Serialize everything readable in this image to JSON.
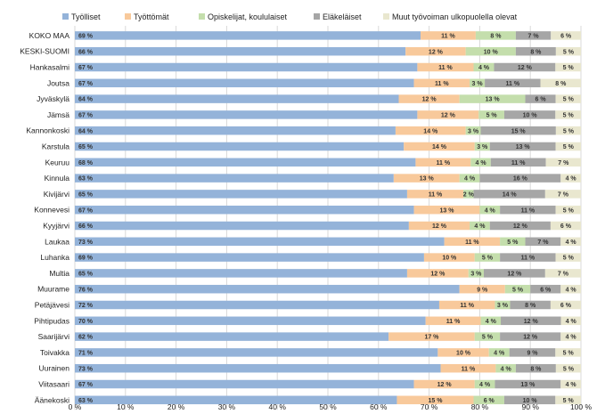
{
  "chart_data": {
    "type": "bar",
    "orientation": "horizontal",
    "stacked": true,
    "percent_stacked": true,
    "title": "",
    "xlabel": "",
    "ylabel": "",
    "xlim": [
      0,
      100
    ],
    "x_ticks": [
      "0 %",
      "10 %",
      "20 %",
      "30 %",
      "40 %",
      "50 %",
      "60 %",
      "70 %",
      "80 %",
      "90 %",
      "100 %"
    ],
    "grid": true,
    "legend_position": "top",
    "categories": [
      "KOKO MAA",
      "KESKI-SUOMI",
      "Hankasalmi",
      "Joutsa",
      "Jyväskylä",
      "Jämsä",
      "Kannonkoski",
      "Karstula",
      "Keuruu",
      "Kinnula",
      "Kivijärvi",
      "Konnevesi",
      "Kyyjärvi",
      "Laukaa",
      "Luhanka",
      "Multia",
      "Muurame",
      "Petäjävesi",
      "Pihtipudas",
      "Saarijärvi",
      "Toivakka",
      "Uurainen",
      "Viitasaari",
      "Äänekoski"
    ],
    "series": [
      {
        "name": "Työlliset",
        "color": "#94b3d9",
        "values": [
          69,
          66,
          67,
          67,
          64,
          67,
          64,
          65,
          68,
          63,
          65,
          67,
          66,
          73,
          69,
          65,
          76,
          72,
          70,
          62,
          71,
          73,
          67,
          63
        ],
        "labels": [
          "69 %",
          "66 %",
          "67 %",
          "67 %",
          "64 %",
          "67 %",
          "64 %",
          "65 %",
          "68 %",
          "63 %",
          "65 %",
          "67 %",
          "66 %",
          "73 %",
          "69 %",
          "65 %",
          "76 %",
          "72 %",
          "70 %",
          "62 %",
          "71 %",
          "73 %",
          "67 %",
          "63 %"
        ]
      },
      {
        "name": "Työttömät",
        "color": "#f8c99b",
        "values": [
          11,
          12,
          11,
          11,
          12,
          12,
          14,
          14,
          11,
          13,
          11,
          13,
          12,
          11,
          10,
          12,
          9,
          11,
          11,
          17,
          10,
          11,
          12,
          15
        ],
        "labels": [
          "11 %",
          "12 %",
          "11 %",
          "11 %",
          "12 %",
          "12 %",
          "14 %",
          "14 %",
          "11 %",
          "13 %",
          "11 %",
          "13 %",
          "12 %",
          "11 %",
          "10 %",
          "12 %",
          "9 %",
          "11 %",
          "11 %",
          "17 %",
          "10 %",
          "11 %",
          "12 %",
          "15 %"
        ]
      },
      {
        "name": "Opiskelijat, koululaiset",
        "color": "#c4deac",
        "values": [
          8,
          10,
          4,
          3,
          13,
          5,
          3,
          3,
          4,
          4,
          2,
          4,
          4,
          5,
          5,
          3,
          5,
          3,
          4,
          5,
          4,
          4,
          4,
          6
        ],
        "labels": [
          "8 %",
          "10 %",
          "4 %",
          "3 %",
          "13 %",
          "5 %",
          "3 %",
          "3 %",
          "4 %",
          "4 %",
          "2 %",
          "4 %",
          "4 %",
          "5 %",
          "5 %",
          "3 %",
          "5 %",
          "3 %",
          "4 %",
          "5 %",
          "4 %",
          "4 %",
          "4 %",
          "6 %"
        ]
      },
      {
        "name": "Eläkeläiset",
        "color": "#a6a6a6",
        "values": [
          7,
          8,
          12,
          11,
          6,
          10,
          15,
          13,
          11,
          16,
          14,
          11,
          12,
          7,
          11,
          12,
          6,
          8,
          12,
          12,
          9,
          8,
          13,
          10
        ],
        "labels": [
          "7 %",
          "8 %",
          "12 %",
          "11 %",
          "6 %",
          "10 %",
          "15 %",
          "13 %",
          "11 %",
          "16 %",
          "14 %",
          "11 %",
          "12 %",
          "7 %",
          "11 %",
          "12 %",
          "6 %",
          "8 %",
          "12 %",
          "12 %",
          "9 %",
          "8 %",
          "13 %",
          "10 %"
        ]
      },
      {
        "name": "Muut työvoiman ulkopuolella olevat",
        "color": "#e9e7cf",
        "values": [
          6,
          5,
          5,
          8,
          5,
          5,
          5,
          5,
          7,
          4,
          7,
          5,
          6,
          4,
          5,
          7,
          4,
          6,
          4,
          4,
          5,
          5,
          4,
          5
        ],
        "labels": [
          "6 %",
          "5 %",
          "5 %",
          "8 %",
          "5 %",
          "5 %",
          "5 %",
          "5 %",
          "7 %",
          "4 %",
          "7 %",
          "5 %",
          "6 %",
          "4 %",
          "5 %",
          "7 %",
          "4 %",
          "6 %",
          "4 %",
          "4 %",
          "5 %",
          "5 %",
          "4 %",
          "5 %"
        ]
      }
    ]
  }
}
